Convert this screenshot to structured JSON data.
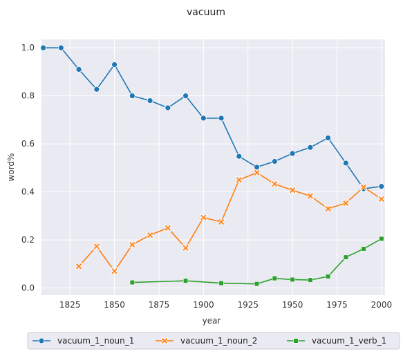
{
  "chart_data": {
    "type": "line",
    "title": "vacuum",
    "xlabel": "year",
    "ylabel": "word%",
    "xlim": [
      1809,
      2002
    ],
    "ylim": [
      -0.03,
      1.035
    ],
    "xticks": [
      1825,
      1850,
      1875,
      1900,
      1925,
      1950,
      1975,
      2000
    ],
    "yticks": [
      0.0,
      0.2,
      0.4,
      0.6,
      0.8,
      1.0
    ],
    "grid": true,
    "legend_position": "bottom-center",
    "series": [
      {
        "name": "vacuum_1_noun_1",
        "color": "#1f77b4",
        "marker": "circle",
        "x": [
          1810,
          1820,
          1830,
          1840,
          1850,
          1860,
          1870,
          1880,
          1890,
          1900,
          1910,
          1920,
          1930,
          1940,
          1950,
          1960,
          1970,
          1980,
          1990,
          2000
        ],
        "y": [
          1.0,
          1.0,
          0.91,
          0.827,
          0.93,
          0.8,
          0.78,
          0.75,
          0.8,
          0.707,
          0.707,
          0.548,
          0.503,
          0.527,
          0.56,
          0.585,
          0.625,
          0.52,
          0.413,
          0.423
        ]
      },
      {
        "name": "vacuum_1_noun_2",
        "color": "#ff7f0e",
        "marker": "x",
        "x": [
          1830,
          1840,
          1850,
          1860,
          1870,
          1880,
          1890,
          1900,
          1910,
          1920,
          1930,
          1940,
          1950,
          1960,
          1970,
          1980,
          1990,
          2000
        ],
        "y": [
          0.09,
          0.173,
          0.07,
          0.18,
          0.22,
          0.25,
          0.167,
          0.293,
          0.275,
          0.45,
          0.48,
          0.433,
          0.407,
          0.383,
          0.33,
          0.353,
          0.42,
          0.37
        ]
      },
      {
        "name": "vacuum_1_verb_1",
        "color": "#2ca02c",
        "marker": "square",
        "x": [
          1860,
          1890,
          1910,
          1930,
          1940,
          1950,
          1960,
          1970,
          1980,
          1990,
          2000
        ],
        "y": [
          0.023,
          0.03,
          0.02,
          0.017,
          0.04,
          0.035,
          0.033,
          0.048,
          0.128,
          0.163,
          0.205
        ]
      }
    ]
  }
}
